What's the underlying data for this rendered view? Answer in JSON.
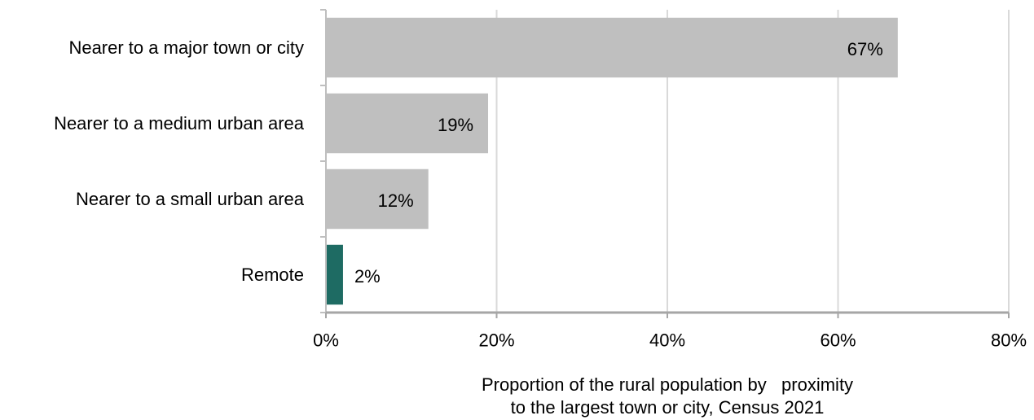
{
  "chart_data": {
    "type": "bar",
    "orientation": "horizontal",
    "categories": [
      "Nearer to a major town or city",
      "Nearer to a medium urban area",
      "Nearer to a small urban area",
      "Remote"
    ],
    "values": [
      67,
      19,
      12,
      2
    ],
    "value_labels": [
      "67%",
      "19%",
      "12%",
      "2%"
    ],
    "bar_colors": [
      "#bfbfbf",
      "#bfbfbf",
      "#bfbfbf",
      "#1e6b63"
    ],
    "xlabel_lines": [
      "Proportion of the rural population by   proximity",
      "to the largest town or city, Census 2021"
    ],
    "xlim": [
      0,
      80
    ],
    "xticks": [
      0,
      20,
      40,
      60,
      80
    ],
    "xtick_labels": [
      "0%",
      "20%",
      "40%",
      "60%",
      "80%"
    ],
    "grid": true
  }
}
